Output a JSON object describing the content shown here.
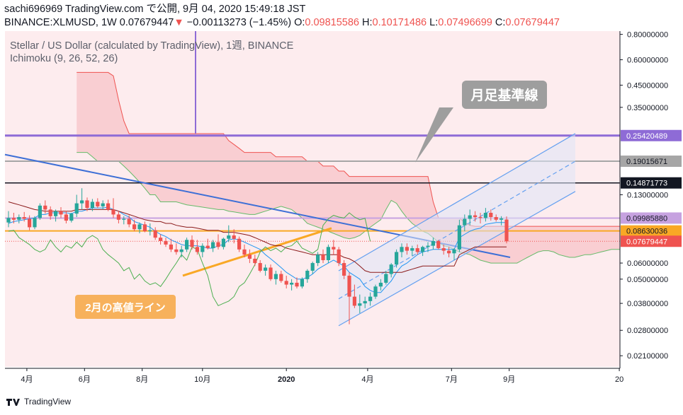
{
  "header": {
    "line1": "sachi696969 TradingView.com で公開, 9月 04, 2020 15:49:18 JST",
    "symbol": "BINANCE:XLMUSD, 1W",
    "last": "0.07679447",
    "arrow": "▼",
    "change": "−0.00113273 (−1.45%)",
    "o_label": "O:",
    "o": "0.09815586",
    "h_label": "H:",
    "h": "0.10171486",
    "l_label": "L:",
    "l": "0.07496699",
    "c_label": "C:",
    "c": "0.07679447"
  },
  "legend": {
    "title": "Stellar / US Dollar (calculated by TradingView), 1週, BINANCE",
    "indicator": "Ichimoku (9, 26, 52, 26)"
  },
  "annotations": {
    "kijun_label": "月足基準線",
    "feb_label": "2月の高値ライン"
  },
  "footer": {
    "brand": "TradingView"
  },
  "colors": {
    "up": "#26a69a",
    "down": "#ef5350",
    "cloud": "#f8c9cc",
    "conversion": "#2196f3",
    "base": "#8b1a1a",
    "lagging": "#4caf50",
    "spanA": "#66bb6a",
    "spanB": "#ef5350",
    "trendline": "#3d6fd6",
    "orange": "#f9a825",
    "purple": "#8e6bd6",
    "grey": "#a6a6a6",
    "black": "#131722"
  },
  "chart_data": {
    "type": "candlestick",
    "symbol": "BINANCE:XLMUSD",
    "interval": "1W",
    "ylim": [
      0.0185,
      0.83
    ],
    "y_scale": "log",
    "y_ticks": [
      "0.80000000",
      "0.60000000",
      "0.45000000",
      "0.35000000",
      "0.13000000",
      "0.06000000",
      "0.05000000",
      "0.03800000",
      "0.02800000",
      "0.02100000"
    ],
    "x_ticks": [
      "4月",
      "6月",
      "8月",
      "10月",
      "2020",
      "4月",
      "7月",
      "9月",
      "20"
    ],
    "price_labels": [
      {
        "value": 0.25420489,
        "text": "0.25420489",
        "color": "#8e6bd6"
      },
      {
        "value": 0.19015671,
        "text": "0.19015671",
        "color": "#a6a6a6"
      },
      {
        "value": 0.14871773,
        "text": "0.14871773",
        "color": "#131722"
      },
      {
        "value": 0.0998588,
        "text": "0.09985880",
        "color": "#c6a2e0"
      },
      {
        "value": 0.08630036,
        "text": "0.08630036",
        "color": "#f9a825"
      },
      {
        "value": 0.07679447,
        "text": "0.07679447",
        "color": "#ef5350"
      }
    ],
    "horizontal_lines": [
      {
        "value": 0.25420489,
        "color": "#8e6bd6",
        "width": 3
      },
      {
        "value": 0.19015671,
        "color": "#a6a6a6",
        "width": 2
      },
      {
        "value": 0.14871773,
        "color": "#131722",
        "width": 1.5
      },
      {
        "value": 0.0998588,
        "color": "#c6a2e0",
        "width": 2
      },
      {
        "value": 0.08630036,
        "color": "#f9a825",
        "width": 2
      }
    ],
    "candles": [
      [
        0.095,
        0.108,
        0.09,
        0.1
      ],
      [
        0.1,
        0.106,
        0.094,
        0.098
      ],
      [
        0.098,
        0.104,
        0.094,
        0.101
      ],
      [
        0.101,
        0.107,
        0.096,
        0.099
      ],
      [
        0.099,
        0.103,
        0.087,
        0.09
      ],
      [
        0.09,
        0.102,
        0.088,
        0.1
      ],
      [
        0.1,
        0.118,
        0.098,
        0.115
      ],
      [
        0.115,
        0.122,
        0.105,
        0.11
      ],
      [
        0.11,
        0.114,
        0.098,
        0.102
      ],
      [
        0.102,
        0.11,
        0.096,
        0.108
      ],
      [
        0.108,
        0.113,
        0.1,
        0.104
      ],
      [
        0.104,
        0.108,
        0.094,
        0.097
      ],
      [
        0.097,
        0.106,
        0.095,
        0.105
      ],
      [
        0.105,
        0.13,
        0.101,
        0.118
      ],
      [
        0.118,
        0.14,
        0.11,
        0.122
      ],
      [
        0.122,
        0.126,
        0.108,
        0.112
      ],
      [
        0.112,
        0.124,
        0.108,
        0.12
      ],
      [
        0.12,
        0.125,
        0.112,
        0.114
      ],
      [
        0.114,
        0.122,
        0.11,
        0.118
      ],
      [
        0.118,
        0.123,
        0.108,
        0.11
      ],
      [
        0.11,
        0.125,
        0.1,
        0.104
      ],
      [
        0.104,
        0.108,
        0.094,
        0.098
      ],
      [
        0.098,
        0.102,
        0.093,
        0.099
      ],
      [
        0.099,
        0.103,
        0.09,
        0.093
      ],
      [
        0.093,
        0.098,
        0.086,
        0.088
      ],
      [
        0.088,
        0.095,
        0.084,
        0.093
      ],
      [
        0.093,
        0.096,
        0.085,
        0.086
      ],
      [
        0.086,
        0.094,
        0.082,
        0.087
      ],
      [
        0.087,
        0.09,
        0.078,
        0.08
      ],
      [
        0.08,
        0.083,
        0.074,
        0.077
      ],
      [
        0.077,
        0.08,
        0.072,
        0.074
      ],
      [
        0.074,
        0.079,
        0.068,
        0.07
      ],
      [
        0.07,
        0.075,
        0.066,
        0.068
      ],
      [
        0.068,
        0.073,
        0.064,
        0.07
      ],
      [
        0.07,
        0.08,
        0.068,
        0.078
      ],
      [
        0.078,
        0.082,
        0.07,
        0.072
      ],
      [
        0.072,
        0.078,
        0.066,
        0.068
      ],
      [
        0.068,
        0.075,
        0.064,
        0.073
      ],
      [
        0.073,
        0.079,
        0.07,
        0.071
      ],
      [
        0.071,
        0.078,
        0.068,
        0.076
      ],
      [
        0.076,
        0.083,
        0.07,
        0.072
      ],
      [
        0.072,
        0.08,
        0.07,
        0.079
      ],
      [
        0.079,
        0.092,
        0.076,
        0.082
      ],
      [
        0.082,
        0.088,
        0.075,
        0.079
      ],
      [
        0.079,
        0.081,
        0.068,
        0.07
      ],
      [
        0.07,
        0.074,
        0.064,
        0.066
      ],
      [
        0.066,
        0.07,
        0.06,
        0.063
      ],
      [
        0.063,
        0.066,
        0.058,
        0.06
      ],
      [
        0.06,
        0.062,
        0.054,
        0.055
      ],
      [
        0.055,
        0.059,
        0.052,
        0.057
      ],
      [
        0.057,
        0.059,
        0.049,
        0.05
      ],
      [
        0.05,
        0.055,
        0.047,
        0.053
      ],
      [
        0.053,
        0.055,
        0.048,
        0.049
      ],
      [
        0.049,
        0.052,
        0.045,
        0.047
      ],
      [
        0.047,
        0.05,
        0.044,
        0.048
      ],
      [
        0.048,
        0.051,
        0.045,
        0.046
      ],
      [
        0.046,
        0.051,
        0.045,
        0.05
      ],
      [
        0.05,
        0.056,
        0.048,
        0.055
      ],
      [
        0.055,
        0.061,
        0.053,
        0.06
      ],
      [
        0.06,
        0.068,
        0.058,
        0.066
      ],
      [
        0.066,
        0.07,
        0.06,
        0.062
      ],
      [
        0.062,
        0.074,
        0.06,
        0.072
      ],
      [
        0.072,
        0.078,
        0.066,
        0.07
      ],
      [
        0.07,
        0.072,
        0.058,
        0.06
      ],
      [
        0.06,
        0.062,
        0.05,
        0.052
      ],
      [
        0.052,
        0.054,
        0.03,
        0.041
      ],
      [
        0.041,
        0.047,
        0.036,
        0.037
      ],
      [
        0.037,
        0.042,
        0.034,
        0.038
      ],
      [
        0.038,
        0.041,
        0.036,
        0.039
      ],
      [
        0.039,
        0.043,
        0.037,
        0.041
      ],
      [
        0.041,
        0.047,
        0.04,
        0.046
      ],
      [
        0.046,
        0.05,
        0.044,
        0.048
      ],
      [
        0.048,
        0.055,
        0.047,
        0.053
      ],
      [
        0.053,
        0.06,
        0.051,
        0.059
      ],
      [
        0.059,
        0.07,
        0.057,
        0.068
      ],
      [
        0.068,
        0.075,
        0.064,
        0.072
      ],
      [
        0.072,
        0.075,
        0.066,
        0.069
      ],
      [
        0.069,
        0.073,
        0.065,
        0.071
      ],
      [
        0.071,
        0.074,
        0.066,
        0.068
      ],
      [
        0.068,
        0.073,
        0.065,
        0.072
      ],
      [
        0.072,
        0.076,
        0.068,
        0.073
      ],
      [
        0.073,
        0.08,
        0.07,
        0.077
      ],
      [
        0.077,
        0.078,
        0.07,
        0.071
      ],
      [
        0.071,
        0.074,
        0.066,
        0.069
      ],
      [
        0.069,
        0.072,
        0.064,
        0.067
      ],
      [
        0.067,
        0.071,
        0.062,
        0.07
      ],
      [
        0.07,
        0.098,
        0.068,
        0.092
      ],
      [
        0.092,
        0.104,
        0.086,
        0.099
      ],
      [
        0.099,
        0.11,
        0.092,
        0.103
      ],
      [
        0.103,
        0.108,
        0.096,
        0.101
      ],
      [
        0.101,
        0.106,
        0.094,
        0.1
      ],
      [
        0.1,
        0.112,
        0.096,
        0.106
      ],
      [
        0.106,
        0.11,
        0.097,
        0.101
      ],
      [
        0.101,
        0.104,
        0.096,
        0.098
      ],
      [
        0.098,
        0.102,
        0.092,
        0.0995
      ],
      [
        0.0982,
        0.1017,
        0.075,
        0.0768
      ]
    ],
    "series": [
      {
        "name": "conversion",
        "color": "#2196f3",
        "values": [
          0.094,
          0.096,
          0.097,
          0.098,
          0.099,
          0.1,
          0.104,
          0.104,
          0.106,
          0.106,
          0.106,
          0.106,
          0.105,
          0.108,
          0.108,
          0.11,
          0.112,
          0.112,
          0.112,
          0.113,
          0.11,
          0.108,
          0.104,
          0.101,
          0.096,
          0.094,
          0.092,
          0.09,
          0.086,
          0.083,
          0.081,
          0.078,
          0.076,
          0.074,
          0.073,
          0.073,
          0.073,
          0.072,
          0.071,
          0.071,
          0.073,
          0.074,
          0.078,
          0.079,
          0.078,
          0.076,
          0.074,
          0.072,
          0.07,
          0.066,
          0.063,
          0.06,
          0.057,
          0.054,
          0.052,
          0.05,
          0.05,
          0.051,
          0.053,
          0.056,
          0.058,
          0.06,
          0.062,
          0.06,
          0.058,
          0.054,
          0.052,
          0.05,
          0.046,
          0.044,
          0.043,
          0.043,
          0.046,
          0.049,
          0.054,
          0.058,
          0.06,
          0.063,
          0.066,
          0.068,
          0.069,
          0.07,
          0.07,
          0.07,
          0.07,
          0.07,
          0.08,
          0.083,
          0.086,
          0.088,
          0.089,
          0.093,
          0.094,
          0.095,
          0.095,
          0.095
        ]
      },
      {
        "name": "base",
        "color": "#8b1a1a",
        "values": [
          0.12,
          0.118,
          0.116,
          0.114,
          0.112,
          0.11,
          0.109,
          0.108,
          0.108,
          0.108,
          0.108,
          0.108,
          0.108,
          0.11,
          0.11,
          0.11,
          0.11,
          0.11,
          0.11,
          0.11,
          0.11,
          0.108,
          0.106,
          0.104,
          0.102,
          0.1,
          0.098,
          0.097,
          0.096,
          0.096,
          0.094,
          0.094,
          0.092,
          0.091,
          0.09,
          0.09,
          0.089,
          0.088,
          0.087,
          0.087,
          0.087,
          0.085,
          0.085,
          0.085,
          0.084,
          0.083,
          0.082,
          0.08,
          0.078,
          0.076,
          0.074,
          0.073,
          0.073,
          0.071,
          0.07,
          0.069,
          0.068,
          0.067,
          0.066,
          0.066,
          0.066,
          0.066,
          0.066,
          0.066,
          0.064,
          0.063,
          0.061,
          0.058,
          0.055,
          0.054,
          0.054,
          0.054,
          0.054,
          0.054,
          0.054,
          0.054,
          0.055,
          0.056,
          0.057,
          0.058,
          0.058,
          0.058,
          0.058,
          0.058,
          0.058,
          0.058,
          0.066,
          0.068,
          0.07,
          0.072,
          0.072,
          0.072,
          0.072,
          0.072,
          0.072,
          0.072
        ]
      }
    ],
    "lagging_span": {
      "color": "#4caf50",
      "offset_weeks": -26
    },
    "cloud": {
      "spanA_color": "#66bb6a",
      "spanB_color": "#ef5350",
      "fill": "#f8c9cc",
      "offset_weeks": 26
    },
    "cloud_spanB": [
      0.52,
      0.52,
      0.52,
      0.52,
      0.52,
      0.52,
      0.52,
      0.5,
      0.38,
      0.3,
      0.26,
      0.26,
      0.26,
      0.26,
      0.26,
      0.26,
      0.26,
      0.26,
      0.26,
      0.26,
      0.26,
      0.26,
      0.26,
      0.26,
      0.26,
      0.26,
      0.26,
      0.26,
      0.26,
      0.24,
      0.23,
      0.22,
      0.21,
      0.21,
      0.21,
      0.21,
      0.21,
      0.21,
      0.2,
      0.2,
      0.2,
      0.2,
      0.2,
      0.2,
      0.19,
      0.19,
      0.19,
      0.18,
      0.18,
      0.18,
      0.17,
      0.17,
      0.16,
      0.16,
      0.16,
      0.16,
      0.16,
      0.16,
      0.16,
      0.16,
      0.16,
      0.16,
      0.16,
      0.16,
      0.16,
      0.16,
      0.16,
      0.16,
      0.12,
      0.1,
      0.1,
      0.1,
      0.1,
      0.1,
      0.095,
      0.092,
      0.091,
      0.091,
      0.091,
      0.091,
      0.091,
      0.091,
      0.091,
      0.091,
      0.091,
      0.091,
      0.091,
      0.091,
      0.091,
      0.091,
      0.091,
      0.091,
      0.091,
      0.091,
      0.091,
      0.091,
      0.091,
      0.091,
      0.091,
      0.091,
      0.091,
      0.091,
      0.091,
      0.091,
      0.091,
      0.091,
      0.091,
      0.091,
      0.091,
      0.088,
      0.088,
      0.088,
      0.088,
      0.075,
      0.072,
      0.07,
      0.066,
      0.066,
      0.07,
      0.072,
      0.074,
      0.075
    ],
    "cloud_spanA": [
      0.21,
      0.21,
      0.21,
      0.2,
      0.19,
      0.19,
      0.19,
      0.19,
      0.19,
      0.18,
      0.17,
      0.16,
      0.15,
      0.14,
      0.13,
      0.13,
      0.12,
      0.12,
      0.12,
      0.12,
      0.118,
      0.116,
      0.115,
      0.114,
      0.113,
      0.112,
      0.111,
      0.11,
      0.11,
      0.108,
      0.107,
      0.106,
      0.105,
      0.104,
      0.104,
      0.106,
      0.108,
      0.11,
      0.112,
      0.114,
      0.112,
      0.11,
      0.105,
      0.1,
      0.094,
      0.092,
      0.09,
      0.088,
      0.086,
      0.084,
      0.082,
      0.08,
      0.079,
      0.08,
      0.082,
      0.086,
      0.09,
      0.094,
      0.098,
      0.11,
      0.122,
      0.118,
      0.108,
      0.1,
      0.094,
      0.09,
      0.086,
      0.084,
      0.08,
      0.076,
      0.073,
      0.072,
      0.07,
      0.068,
      0.067,
      0.066,
      0.064,
      0.062,
      0.061,
      0.06,
      0.06,
      0.06,
      0.06,
      0.06,
      0.06,
      0.062,
      0.064,
      0.066,
      0.068,
      0.069,
      0.069,
      0.068,
      0.066,
      0.065,
      0.064,
      0.064,
      0.065,
      0.066,
      0.066,
      0.067,
      0.068,
      0.069,
      0.07,
      0.07,
      0.07,
      0.07,
      0.07,
      0.07,
      0.07,
      0.068,
      0.066,
      0.066,
      0.066,
      0.067,
      0.067,
      0.068,
      0.07,
      0.072,
      0.074,
      0.076,
      0.078,
      0.08
    ]
  }
}
